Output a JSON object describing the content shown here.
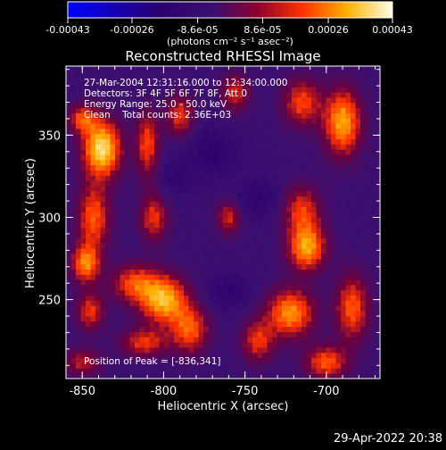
{
  "figure": {
    "footer_date": "29-Apr-2022 20:38"
  },
  "colorbar": {
    "tick_labels": [
      "-0.00043",
      "-0.00026",
      "-8.6e-05",
      "8.6e-05",
      "0.00026",
      "0.00043"
    ],
    "tick_values": [
      -0.00043,
      -0.00026,
      -8.6e-05,
      8.6e-05,
      0.00026,
      0.00043
    ],
    "range": [
      -0.00043,
      0.00043
    ],
    "unit_label": "(photons cm⁻² s⁻¹ asec⁻²)",
    "colors": {
      "min": "#0000ff",
      "mid_low": "#2a0060",
      "mid": "#3a1070",
      "mid_high": "#8a0030",
      "orange": "#ff4000",
      "yellow": "#ffd000",
      "max": "#ffffe8"
    }
  },
  "chart_data": {
    "type": "heatmap",
    "title": "Reconstructed RHESSI Image",
    "xlabel": "Heliocentric X (arcsec)",
    "ylabel": "Heliocentric Y (arcsec)",
    "xlim": [
      -860,
      -667
    ],
    "ylim": [
      202,
      392
    ],
    "x_ticks": [
      -850,
      -800,
      -750,
      -700
    ],
    "y_ticks": [
      250,
      300,
      350
    ],
    "x_tick_labels": [
      "-850",
      "-800",
      "-750",
      "-700"
    ],
    "y_tick_labels": [
      "250",
      "300",
      "350"
    ],
    "grid": false,
    "annotations": [
      "27-Mar-2004 12:31:16.000 to 12:34:00.000",
      "Detectors: 3F 4F 5F 6F 7F 8F, Att 0",
      "Energy Range: 25.0 - 50.0 keV",
      "Clean    Total counts: 2.36E+03"
    ],
    "peak_label": "Position of Peak = [-836,341]",
    "peak_position": [
      -836,
      341
    ],
    "blobs": [
      {
        "x": -838,
        "y": 342,
        "sx": 8,
        "sy": 12,
        "a": 1.0
      },
      {
        "x": -850,
        "y": 360,
        "sx": 6,
        "sy": 6,
        "a": 0.55
      },
      {
        "x": -843,
        "y": 300,
        "sx": 7,
        "sy": 14,
        "a": 0.6
      },
      {
        "x": -848,
        "y": 272,
        "sx": 6,
        "sy": 8,
        "a": 0.7
      },
      {
        "x": -845,
        "y": 243,
        "sx": 6,
        "sy": 8,
        "a": 0.5
      },
      {
        "x": -810,
        "y": 345,
        "sx": 5,
        "sy": 14,
        "a": 0.55
      },
      {
        "x": -790,
        "y": 362,
        "sx": 6,
        "sy": 9,
        "a": 0.5
      },
      {
        "x": -806,
        "y": 300,
        "sx": 6,
        "sy": 10,
        "a": 0.5
      },
      {
        "x": -818,
        "y": 260,
        "sx": 10,
        "sy": 8,
        "a": 0.55
      },
      {
        "x": -800,
        "y": 250,
        "sx": 10,
        "sy": 10,
        "a": 0.85
      },
      {
        "x": -784,
        "y": 232,
        "sx": 8,
        "sy": 10,
        "a": 0.6
      },
      {
        "x": -812,
        "y": 224,
        "sx": 10,
        "sy": 6,
        "a": 0.5
      },
      {
        "x": -850,
        "y": 212,
        "sx": 8,
        "sy": 6,
        "a": 0.4
      },
      {
        "x": -760,
        "y": 300,
        "sx": 5,
        "sy": 7,
        "a": 0.45
      },
      {
        "x": -742,
        "y": 225,
        "sx": 7,
        "sy": 9,
        "a": 0.5
      },
      {
        "x": -756,
        "y": 376,
        "sx": 6,
        "sy": 8,
        "a": 0.45
      },
      {
        "x": -715,
        "y": 370,
        "sx": 8,
        "sy": 10,
        "a": 0.55
      },
      {
        "x": -690,
        "y": 358,
        "sx": 8,
        "sy": 14,
        "a": 0.8
      },
      {
        "x": -715,
        "y": 305,
        "sx": 8,
        "sy": 10,
        "a": 0.5
      },
      {
        "x": -712,
        "y": 282,
        "sx": 8,
        "sy": 10,
        "a": 0.8
      },
      {
        "x": -722,
        "y": 242,
        "sx": 10,
        "sy": 10,
        "a": 0.75
      },
      {
        "x": -684,
        "y": 245,
        "sx": 7,
        "sy": 14,
        "a": 0.6
      },
      {
        "x": -700,
        "y": 212,
        "sx": 9,
        "sy": 7,
        "a": 0.6
      },
      {
        "x": -770,
        "y": 340,
        "sx": 10,
        "sy": 10,
        "a": -0.35
      },
      {
        "x": -742,
        "y": 312,
        "sx": 8,
        "sy": 8,
        "a": -0.3
      },
      {
        "x": -760,
        "y": 255,
        "sx": 9,
        "sy": 7,
        "a": -0.3
      },
      {
        "x": -792,
        "y": 325,
        "sx": 7,
        "sy": 8,
        "a": -0.25
      }
    ]
  }
}
